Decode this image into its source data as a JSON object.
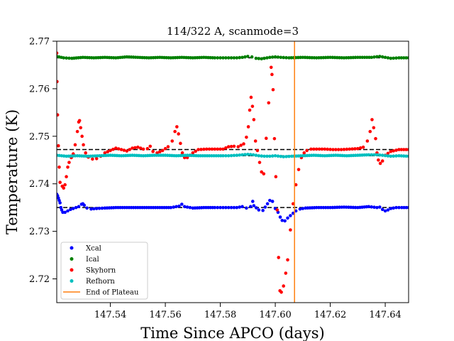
{
  "chart_data": {
    "type": "scatter",
    "title": "114/322 A, scanmode=3",
    "xlabel": "Time Since APCO (days)",
    "ylabel": "Temperature (K)",
    "xlim": [
      147.5205,
      147.6485
    ],
    "ylim": [
      2.715,
      2.77
    ],
    "grid": false,
    "legend_position": "lower-left",
    "x_ticks": [
      147.54,
      147.56,
      147.58,
      147.6,
      147.62,
      147.64
    ],
    "x_tick_labels": [
      "147.54",
      "147.56",
      "147.58",
      "147.60",
      "147.62",
      "147.64"
    ],
    "y_ticks": [
      2.72,
      2.73,
      2.74,
      2.75,
      2.76,
      2.77
    ],
    "y_tick_labels": [
      "2.72",
      "2.73",
      "2.74",
      "2.75",
      "2.76",
      "2.77"
    ],
    "reference_lines": [
      {
        "y": 2.7665,
        "style": "dashed",
        "color": "#000000"
      },
      {
        "y": 2.7472,
        "style": "dashed",
        "color": "#000000"
      },
      {
        "y": 2.7459,
        "style": "dashed",
        "color": "#000000"
      },
      {
        "y": 2.735,
        "style": "dashed",
        "color": "#000000"
      }
    ],
    "vertical_line": {
      "name": "End of Plateau",
      "x": 147.607,
      "color": "#ff7f0e"
    },
    "series": [
      {
        "name": "Xcal",
        "color": "#0000ff",
        "points": [
          [
            147.5205,
            2.7378
          ],
          [
            147.5208,
            2.7375
          ],
          [
            147.5211,
            2.737
          ],
          [
            147.5214,
            2.7365
          ],
          [
            147.5217,
            2.736
          ],
          [
            147.522,
            2.735
          ],
          [
            147.5223,
            2.7345
          ],
          [
            147.5227,
            2.734
          ],
          [
            147.5235,
            2.734
          ],
          [
            147.5245,
            2.7343
          ],
          [
            147.5255,
            2.7346
          ],
          [
            147.5265,
            2.7348
          ],
          [
            147.5275,
            2.735
          ],
          [
            147.5285,
            2.7352
          ],
          [
            147.5295,
            2.7357
          ],
          [
            147.53,
            2.7358
          ],
          [
            147.5305,
            2.7355
          ],
          [
            147.5315,
            2.7349
          ],
          [
            147.533,
            2.7347
          ],
          [
            147.535,
            2.7348
          ],
          [
            147.538,
            2.7349
          ],
          [
            147.542,
            2.735
          ],
          [
            147.546,
            2.735
          ],
          [
            147.55,
            2.735
          ],
          [
            147.554,
            2.735
          ],
          [
            147.558,
            2.735
          ],
          [
            147.562,
            2.735
          ],
          [
            147.565,
            2.7353
          ],
          [
            147.566,
            2.7357
          ],
          [
            147.567,
            2.7352
          ],
          [
            147.57,
            2.7349
          ],
          [
            147.574,
            2.735
          ],
          [
            147.578,
            2.735
          ],
          [
            147.581,
            2.735
          ],
          [
            147.583,
            2.735
          ],
          [
            147.586,
            2.735
          ],
          [
            147.588,
            2.7352
          ],
          [
            147.5895,
            2.7349
          ],
          [
            147.591,
            2.7352
          ],
          [
            147.5918,
            2.7363
          ],
          [
            147.5922,
            2.7354
          ],
          [
            147.594,
            2.7345
          ],
          [
            147.5955,
            2.7344
          ],
          [
            147.598,
            2.7365
          ],
          [
            147.599,
            2.7363
          ],
          [
            147.6,
            2.7348
          ],
          [
            147.601,
            2.734
          ],
          [
            147.6018,
            2.733
          ],
          [
            147.6025,
            2.7323
          ],
          [
            147.6035,
            2.7322
          ],
          [
            147.6045,
            2.7328
          ],
          [
            147.6055,
            2.7333
          ],
          [
            147.6065,
            2.7338
          ],
          [
            147.6075,
            2.7343
          ],
          [
            147.609,
            2.7347
          ],
          [
            147.611,
            2.7349
          ],
          [
            147.615,
            2.735
          ],
          [
            147.62,
            2.735
          ],
          [
            147.625,
            2.7351
          ],
          [
            147.63,
            2.735
          ],
          [
            147.634,
            2.7352
          ],
          [
            147.637,
            2.735
          ],
          [
            147.638,
            2.7351
          ],
          [
            147.639,
            2.7346
          ],
          [
            147.64,
            2.7343
          ],
          [
            147.641,
            2.7345
          ],
          [
            147.642,
            2.7348
          ],
          [
            147.644,
            2.735
          ],
          [
            147.646,
            2.735
          ],
          [
            147.6485,
            2.735
          ]
        ]
      },
      {
        "name": "Ical",
        "color": "#008000",
        "points": [
          [
            147.5205,
            2.7668
          ],
          [
            147.523,
            2.7665
          ],
          [
            147.526,
            2.7664
          ],
          [
            147.53,
            2.7666
          ],
          [
            147.534,
            2.7665
          ],
          [
            147.538,
            2.7666
          ],
          [
            147.542,
            2.7665
          ],
          [
            147.546,
            2.7667
          ],
          [
            147.55,
            2.7666
          ],
          [
            147.554,
            2.7665
          ],
          [
            147.558,
            2.7666
          ],
          [
            147.562,
            2.7665
          ],
          [
            147.566,
            2.7666
          ],
          [
            147.57,
            2.7665
          ],
          [
            147.574,
            2.7666
          ],
          [
            147.578,
            2.7665
          ],
          [
            147.581,
            2.7665
          ],
          [
            147.583,
            2.7665
          ],
          [
            147.586,
            2.7665
          ],
          [
            147.588,
            2.7666
          ],
          [
            147.59,
            2.7668
          ],
          [
            147.5915,
            2.7667
          ],
          [
            147.593,
            2.7664
          ],
          [
            147.595,
            2.7663
          ],
          [
            147.598,
            2.7666
          ],
          [
            147.6,
            2.7667
          ],
          [
            147.602,
            2.7666
          ],
          [
            147.605,
            2.7665
          ],
          [
            147.61,
            2.7666
          ],
          [
            147.615,
            2.7665
          ],
          [
            147.62,
            2.7666
          ],
          [
            147.625,
            2.7665
          ],
          [
            147.63,
            2.7666
          ],
          [
            147.635,
            2.7666
          ],
          [
            147.638,
            2.7668
          ],
          [
            147.64,
            2.7666
          ],
          [
            147.642,
            2.7664
          ],
          [
            147.645,
            2.7665
          ],
          [
            147.6485,
            2.7665
          ]
        ]
      },
      {
        "name": "Skyhorn",
        "color": "#ff0000",
        "points": [
          [
            147.5205,
            2.7675
          ],
          [
            147.5206,
            2.7615
          ],
          [
            147.5208,
            2.7545
          ],
          [
            147.5211,
            2.748
          ],
          [
            147.5214,
            2.7435
          ],
          [
            147.5217,
            2.7403
          ],
          [
            147.5225,
            2.7395
          ],
          [
            147.523,
            2.7391
          ],
          [
            147.5235,
            2.7398
          ],
          [
            147.524,
            2.7415
          ],
          [
            147.5245,
            2.7435
          ],
          [
            147.525,
            2.7445
          ],
          [
            147.5258,
            2.7455
          ],
          [
            147.5265,
            2.7463
          ],
          [
            147.5272,
            2.7482
          ],
          [
            147.528,
            2.751
          ],
          [
            147.5285,
            2.753
          ],
          [
            147.5288,
            2.7533
          ],
          [
            147.5292,
            2.7518
          ],
          [
            147.5297,
            2.75
          ],
          [
            147.5302,
            2.7482
          ],
          [
            147.531,
            2.7465
          ],
          [
            147.532,
            2.7456
          ],
          [
            147.5335,
            2.7452
          ],
          [
            147.535,
            2.7453
          ],
          [
            147.5365,
            2.7458
          ],
          [
            147.538,
            2.7465
          ],
          [
            147.54,
            2.747
          ],
          [
            147.542,
            2.7475
          ],
          [
            147.544,
            2.7472
          ],
          [
            147.546,
            2.7469
          ],
          [
            147.548,
            2.7475
          ],
          [
            147.55,
            2.7477
          ],
          [
            147.552,
            2.7473
          ],
          [
            147.5535,
            2.7474
          ],
          [
            147.5545,
            2.7479
          ],
          [
            147.5555,
            2.7468
          ],
          [
            147.557,
            2.7465
          ],
          [
            147.559,
            2.747
          ],
          [
            147.561,
            2.7478
          ],
          [
            147.5625,
            2.749
          ],
          [
            147.5635,
            2.751
          ],
          [
            147.5642,
            2.752
          ],
          [
            147.5648,
            2.7505
          ],
          [
            147.5655,
            2.7485
          ],
          [
            147.5662,
            2.7465
          ],
          [
            147.567,
            2.7455
          ],
          [
            147.568,
            2.7455
          ],
          [
            147.57,
            2.7465
          ],
          [
            147.572,
            2.7472
          ],
          [
            147.575,
            2.7473
          ],
          [
            147.578,
            2.7473
          ],
          [
            147.581,
            2.7473
          ],
          [
            147.583,
            2.7478
          ],
          [
            147.585,
            2.7479
          ],
          [
            147.5865,
            2.7478
          ],
          [
            147.5875,
            2.7481
          ],
          [
            147.5885,
            2.7484
          ],
          [
            147.5895,
            2.7498
          ],
          [
            147.5902,
            2.752
          ],
          [
            147.5907,
            2.7555
          ],
          [
            147.5912,
            2.7582
          ],
          [
            147.5917,
            2.7563
          ],
          [
            147.5922,
            2.7535
          ],
          [
            147.5928,
            2.749
          ],
          [
            147.5935,
            2.747
          ],
          [
            147.5943,
            2.7445
          ],
          [
            147.595,
            2.7425
          ],
          [
            147.5958,
            2.7421
          ],
          [
            147.5985,
            2.7645
          ],
          [
            147.5988,
            2.763
          ],
          [
            147.5992,
            2.7598
          ],
          [
            147.5997,
            2.7495
          ],
          [
            147.6002,
            2.7415
          ],
          [
            147.6007,
            2.7345
          ],
          [
            147.6012,
            2.7245
          ],
          [
            147.6017,
            2.7175
          ],
          [
            147.6022,
            2.7172
          ],
          [
            147.603,
            2.7185
          ],
          [
            147.6038,
            2.7212
          ],
          [
            147.6045,
            2.724
          ],
          [
            147.6055,
            2.7303
          ],
          [
            147.6065,
            2.7358
          ],
          [
            147.6075,
            2.7398
          ],
          [
            147.6085,
            2.743
          ],
          [
            147.6095,
            2.7455
          ],
          [
            147.6105,
            2.7465
          ],
          [
            147.6115,
            2.747
          ],
          [
            147.613,
            2.7473
          ],
          [
            147.615,
            2.7473
          ],
          [
            147.618,
            2.7473
          ],
          [
            147.621,
            2.7472
          ],
          [
            147.624,
            2.7472
          ],
          [
            147.627,
            2.7473
          ],
          [
            147.63,
            2.7474
          ],
          [
            147.632,
            2.7477
          ],
          [
            147.6335,
            2.749
          ],
          [
            147.6345,
            2.751
          ],
          [
            147.6352,
            2.7535
          ],
          [
            147.6358,
            2.7518
          ],
          [
            147.6365,
            2.7495
          ],
          [
            147.637,
            2.7465
          ],
          [
            147.6375,
            2.745
          ],
          [
            147.6382,
            2.7443
          ],
          [
            147.639,
            2.7448
          ],
          [
            147.64,
            2.746
          ],
          [
            147.642,
            2.7468
          ],
          [
            147.645,
            2.7472
          ],
          [
            147.6485,
            2.7472
          ]
        ]
      },
      {
        "name": "Refhorn",
        "color": "#00bfbf",
        "points": [
          [
            147.5205,
            2.746
          ],
          [
            147.524,
            2.7458
          ],
          [
            147.528,
            2.7459
          ],
          [
            147.532,
            2.7458
          ],
          [
            147.536,
            2.7459
          ],
          [
            147.54,
            2.746
          ],
          [
            147.544,
            2.7459
          ],
          [
            147.548,
            2.746
          ],
          [
            147.552,
            2.7459
          ],
          [
            147.556,
            2.746
          ],
          [
            147.56,
            2.746
          ],
          [
            147.564,
            2.7459
          ],
          [
            147.568,
            2.746
          ],
          [
            147.572,
            2.7459
          ],
          [
            147.576,
            2.7459
          ],
          [
            147.581,
            2.7459
          ],
          [
            147.583,
            2.7459
          ],
          [
            147.586,
            2.746
          ],
          [
            147.588,
            2.7461
          ],
          [
            147.59,
            2.7462
          ],
          [
            147.592,
            2.7461
          ],
          [
            147.594,
            2.7459
          ],
          [
            147.596,
            2.7458
          ],
          [
            147.598,
            2.7458
          ],
          [
            147.6,
            2.7459
          ],
          [
            147.603,
            2.7457
          ],
          [
            147.606,
            2.7458
          ],
          [
            147.61,
            2.7459
          ],
          [
            147.614,
            2.746
          ],
          [
            147.618,
            2.7459
          ],
          [
            147.622,
            2.746
          ],
          [
            147.626,
            2.7459
          ],
          [
            147.63,
            2.746
          ],
          [
            147.634,
            2.7461
          ],
          [
            147.637,
            2.7461
          ],
          [
            147.639,
            2.746
          ],
          [
            147.642,
            2.7458
          ],
          [
            147.645,
            2.7459
          ],
          [
            147.6485,
            2.7458
          ]
        ]
      }
    ]
  }
}
